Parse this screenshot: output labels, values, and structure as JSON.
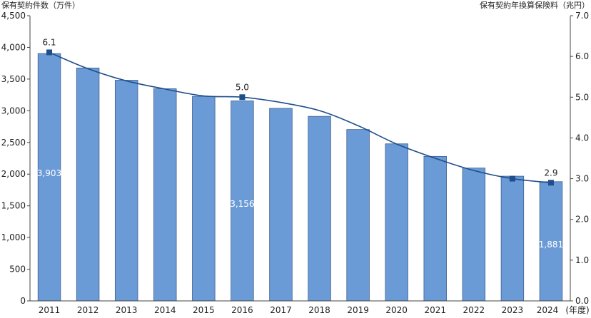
{
  "chart_data": {
    "type": "bar",
    "categories": [
      "2011",
      "2012",
      "2013",
      "2014",
      "2015",
      "2016",
      "2017",
      "2018",
      "2019",
      "2020",
      "2021",
      "2022",
      "2023",
      "2024"
    ],
    "x_unit_label": "(年度)",
    "series": [
      {
        "name": "保有契約件数",
        "axis": "left",
        "type": "bar",
        "color": "#6b9bd6",
        "values": [
          3903,
          3675,
          3482,
          3348,
          3227,
          3156,
          3038,
          2912,
          2704,
          2478,
          2280,
          2096,
          1968,
          1881
        ]
      },
      {
        "name": "保有契約年換算保険料",
        "axis": "right",
        "type": "line",
        "color": "#1f4e8c",
        "values": [
          6.1,
          5.7,
          5.4,
          5.2,
          5.03,
          5.0,
          4.87,
          4.67,
          4.3,
          3.85,
          3.5,
          3.2,
          3.0,
          2.9
        ]
      }
    ],
    "left_axis": {
      "title": "保有契約件数（万件）",
      "ylim": [
        0,
        4500
      ],
      "ticks": [
        "0",
        "500",
        "1,000",
        "1,500",
        "2,000",
        "2,500",
        "3,000",
        "3,500",
        "4,000",
        "4,500"
      ]
    },
    "right_axis": {
      "title": "保有契約年換算保険料（兆円）",
      "ylim": [
        0,
        7
      ],
      "ticks": [
        "0.0",
        "1.0",
        "2.0",
        "3.0",
        "4.0",
        "5.0",
        "6.0",
        "7.0"
      ]
    },
    "bar_labels": [
      {
        "index": 0,
        "text": "3,903"
      },
      {
        "index": 5,
        "text": "3,156"
      },
      {
        "index": 13,
        "text": "1,881"
      }
    ],
    "line_labels": [
      {
        "index": 0,
        "text": "6.1"
      },
      {
        "index": 5,
        "text": "5.0"
      },
      {
        "index": 13,
        "text": "2.9"
      }
    ],
    "line_markers": [
      0,
      5,
      12,
      13
    ],
    "grid": false,
    "legend": "none"
  }
}
